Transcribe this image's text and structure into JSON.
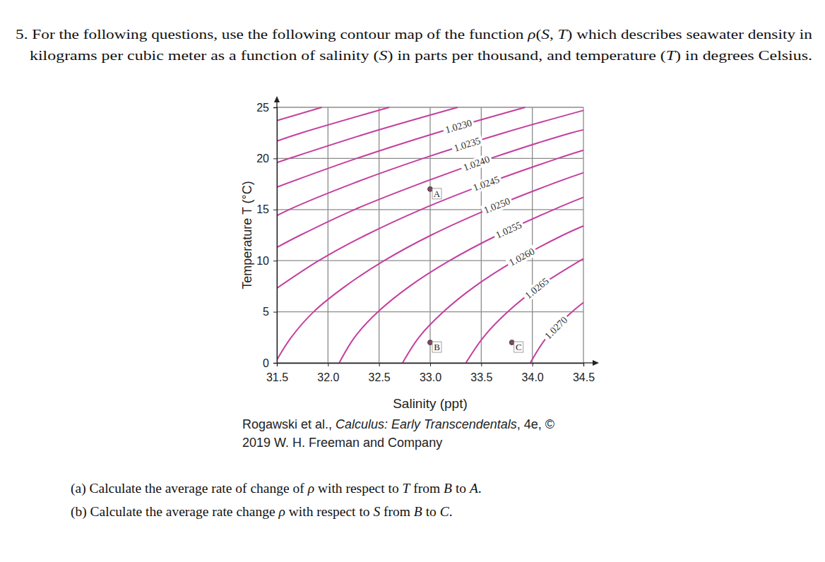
{
  "problem": {
    "intro": [
      "5. For the following questions, use the following contour map of the function ρ(S, T) which describes seawater density in",
      "kilograms per cubic meter as a function of salinity (S) in parts per thousand, and temperature (T) in degrees Celsius."
    ],
    "questions": [
      "(a) Calculate the average rate of change of ρ with respect to T from B to A.",
      "(b) Calculate the average rate change ρ with respect to S from B to C."
    ]
  },
  "credit": [
    [
      {
        "text": "Rogawski et al., "
      },
      {
        "text": "Calculus: Early Transcendentals",
        "italic": true
      },
      {
        "text": ", 4e, ©"
      }
    ],
    [
      {
        "text": "2019 W. H. Freeman and Company"
      }
    ]
  ],
  "chart_data": {
    "type": "contour",
    "xlabel": "Salinity (ppt)",
    "ylabel": "Temperature T (°C)",
    "xlim": [
      31.5,
      34.5
    ],
    "ylim": [
      0,
      25
    ],
    "xticks": [
      31.5,
      {
        "value": 32,
        "label": "32.0"
      },
      32.5,
      {
        "value": 33,
        "label": "33.0"
      },
      33.5,
      {
        "value": 34,
        "label": "34.0"
      },
      34.5
    ],
    "yticks": [
      0,
      5,
      10,
      15,
      20,
      25
    ],
    "grid": true,
    "color": "#c43f9f",
    "series": [
      {
        "x": [
          31.5,
          31.94
        ],
        "values": [
          23.7,
          25
        ]
      },
      {
        "x": [
          31.5,
          31.74,
          32.6
        ],
        "values": [
          21.7,
          22.5,
          25
        ]
      },
      {
        "x": [
          31.5,
          31.62,
          32.4,
          33.27
        ],
        "values": [
          19.6,
          20,
          22.5,
          25
        ]
      },
      {
        "name": "1.0230",
        "x": [
          31.5,
          32.28,
          33.06,
          33.93
        ],
        "values": [
          17.2,
          20,
          22.5,
          25
        ]
      },
      {
        "name": "1.0235",
        "x": [
          31.5,
          31.62,
          32.23,
          32.93,
          33.72,
          34.5
        ],
        "values": [
          14.4,
          15,
          17.5,
          20,
          22.5,
          24.7
        ]
      },
      {
        "name": "1.0240",
        "x": [
          31.5,
          31.73,
          32.26,
          32.89,
          33.59,
          34.38,
          34.5
        ],
        "values": [
          11.3,
          12.5,
          15,
          17.5,
          20,
          22.5,
          22.8
        ]
      },
      {
        "name": "1.0245",
        "x": [
          31.5,
          31.91,
          32.37,
          32.91,
          33.54,
          34.25,
          34.5
        ],
        "values": [
          7.3,
          10,
          12.5,
          15,
          17.5,
          20,
          20.8
        ]
      },
      {
        "name": "1.0250",
        "x": [
          31.5,
          31.64,
          31.86,
          32.17,
          32.55,
          33.01,
          33.56,
          34.19,
          34.5
        ],
        "values": [
          0.3,
          2.5,
          5,
          7.5,
          10,
          12.5,
          15,
          17.5,
          18.6
        ]
      },
      {
        "name": "1.0255",
        "x": [
          32.11,
          32.26,
          32.49,
          32.8,
          33.19,
          33.66,
          34.21,
          34.5
        ],
        "values": [
          0,
          2.5,
          5,
          7.5,
          10,
          12.5,
          15,
          16.2
        ]
      },
      {
        "name": "1.0260",
        "x": [
          32.73,
          32.89,
          33.13,
          33.44,
          33.83,
          34.3,
          34.5
        ],
        "values": [
          0,
          2.5,
          5,
          7.5,
          10,
          12.5,
          13.4
        ]
      },
      {
        "name": "1.0265",
        "x": [
          33.35,
          33.52,
          33.76,
          34.07,
          34.5
        ],
        "values": [
          0,
          2.5,
          5,
          7.5,
          10.2
        ]
      },
      {
        "name": "1.0270",
        "x": [
          33.98,
          34.14,
          34.39,
          34.5
        ],
        "values": [
          0,
          2.5,
          5,
          5.9
        ]
      }
    ],
    "points": [
      {
        "label": "A",
        "x": 33,
        "y": 17
      },
      {
        "label": "B",
        "x": 33,
        "y": 2
      },
      {
        "label": "C",
        "x": 33.8,
        "y": 2
      }
    ]
  }
}
